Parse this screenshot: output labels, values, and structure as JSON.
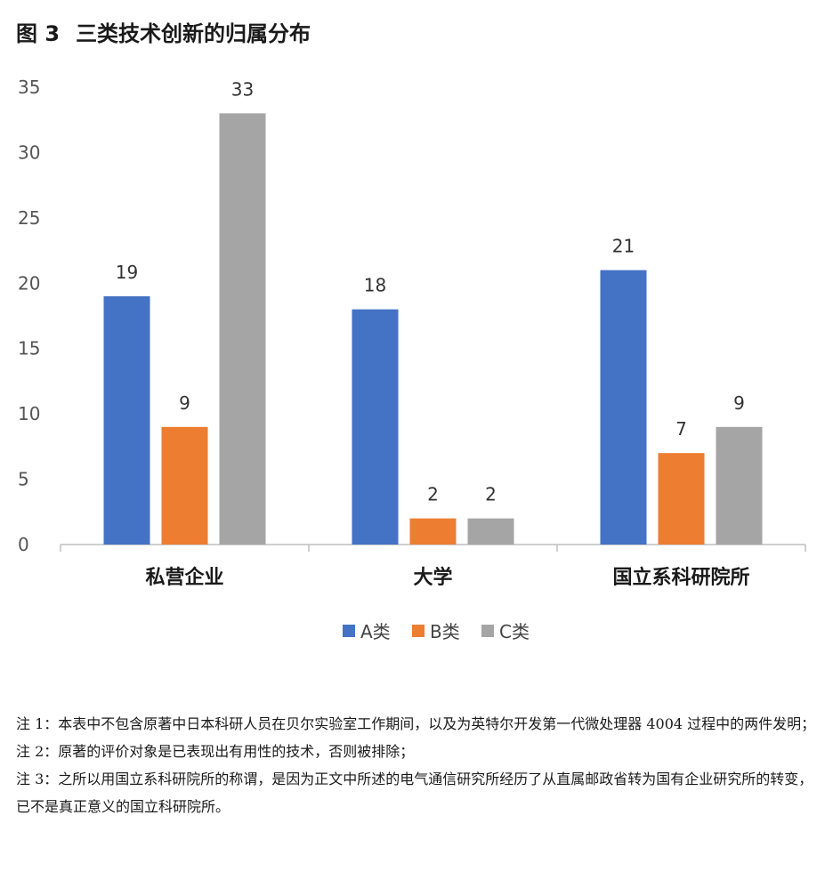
{
  "figure": {
    "number": "图 3",
    "title": "三类技术创新的归属分布"
  },
  "chart_data": {
    "type": "bar",
    "categories": [
      "私营企业",
      "大学",
      "国立系科研院所"
    ],
    "series": [
      {
        "name": "A类",
        "color": "#4472c4",
        "values": [
          19,
          18,
          21
        ]
      },
      {
        "name": "B类",
        "color": "#ed7d31",
        "values": [
          9,
          2,
          7
        ]
      },
      {
        "name": "C类",
        "color": "#a5a5a5",
        "values": [
          33,
          2,
          9
        ]
      }
    ],
    "ylim": [
      0,
      35
    ],
    "yticks": [
      0,
      5,
      10,
      15,
      20,
      25,
      30,
      35
    ],
    "grid": false,
    "legend": "bottom",
    "data_labels": true
  },
  "notes": [
    "注 1：本表中不包含原著中日本科研人员在贝尔实验室工作期间，以及为英特尔开发第一代微处理器 4004 过程中的两件发明；",
    "注 2：原著的评价对象是已表现出有用性的技术，否则被排除；",
    "注 3：之所以用国立系科研院所的称谓，是因为正文中所述的电气通信研究所经历了从直属邮政省转为国有企业研究所的转变，已不是真正意义的国立科研院所。"
  ]
}
